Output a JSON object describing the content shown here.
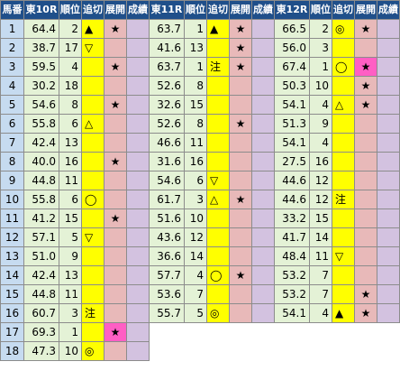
{
  "headers": [
    "馬番",
    "東10R",
    "順位",
    "追切",
    "展開",
    "成績",
    "東11R",
    "順位",
    "追切",
    "展開",
    "成績",
    "東12R",
    "順位",
    "追切",
    "展開",
    "成績"
  ],
  "colors": {
    "header_bg": "#1f4f8a",
    "rownum_bg": "#c6dbf0",
    "score_bg": "#e4f2d6",
    "oikiri_bg": "#ffff00",
    "tenkai_bg": "#e8b9b9",
    "seiseki_bg": "#d3c2e0",
    "highlight_bg": "#ff5fc4"
  },
  "rows": [
    {
      "no": "1",
      "r10": {
        "score": "64.4",
        "rank": "2",
        "oikiri": "▲",
        "tenkai": "★",
        "seiseki": ""
      },
      "r11": {
        "score": "63.7",
        "rank": "1",
        "oikiri": "▲",
        "tenkai": "★",
        "seiseki": ""
      },
      "r12": {
        "score": "66.5",
        "rank": "2",
        "oikiri": "◎",
        "tenkai": "★",
        "seiseki": ""
      }
    },
    {
      "no": "2",
      "r10": {
        "score": "38.7",
        "rank": "17",
        "oikiri": "▽",
        "tenkai": "",
        "seiseki": ""
      },
      "r11": {
        "score": "41.6",
        "rank": "13",
        "oikiri": "",
        "tenkai": "★",
        "seiseki": ""
      },
      "r12": {
        "score": "56.0",
        "rank": "3",
        "oikiri": "",
        "tenkai": "",
        "seiseki": ""
      }
    },
    {
      "no": "3",
      "r10": {
        "score": "59.5",
        "rank": "4",
        "oikiri": "",
        "tenkai": "★",
        "seiseki": ""
      },
      "r11": {
        "score": "63.7",
        "rank": "1",
        "oikiri": "注",
        "tenkai": "★",
        "seiseki": ""
      },
      "r12": {
        "score": "67.4",
        "rank": "1",
        "oikiri": "◯",
        "tenkai": "★",
        "seiseki": "",
        "tenkai_hot": true
      }
    },
    {
      "no": "4",
      "r10": {
        "score": "30.2",
        "rank": "18",
        "oikiri": "",
        "tenkai": "",
        "seiseki": ""
      },
      "r11": {
        "score": "52.6",
        "rank": "8",
        "oikiri": "",
        "tenkai": "",
        "seiseki": ""
      },
      "r12": {
        "score": "50.3",
        "rank": "10",
        "oikiri": "",
        "tenkai": "★",
        "seiseki": ""
      }
    },
    {
      "no": "5",
      "r10": {
        "score": "54.6",
        "rank": "8",
        "oikiri": "",
        "tenkai": "★",
        "seiseki": ""
      },
      "r11": {
        "score": "32.6",
        "rank": "15",
        "oikiri": "",
        "tenkai": "",
        "seiseki": ""
      },
      "r12": {
        "score": "54.1",
        "rank": "4",
        "oikiri": "△",
        "tenkai": "★",
        "seiseki": ""
      }
    },
    {
      "no": "6",
      "r10": {
        "score": "55.8",
        "rank": "6",
        "oikiri": "△",
        "tenkai": "",
        "seiseki": ""
      },
      "r11": {
        "score": "52.6",
        "rank": "8",
        "oikiri": "",
        "tenkai": "★",
        "seiseki": ""
      },
      "r12": {
        "score": "51.3",
        "rank": "9",
        "oikiri": "",
        "tenkai": "",
        "seiseki": ""
      }
    },
    {
      "no": "7",
      "r10": {
        "score": "42.4",
        "rank": "13",
        "oikiri": "",
        "tenkai": "",
        "seiseki": ""
      },
      "r11": {
        "score": "46.6",
        "rank": "11",
        "oikiri": "",
        "tenkai": "",
        "seiseki": ""
      },
      "r12": {
        "score": "54.1",
        "rank": "4",
        "oikiri": "",
        "tenkai": "",
        "seiseki": ""
      }
    },
    {
      "no": "8",
      "r10": {
        "score": "40.0",
        "rank": "16",
        "oikiri": "",
        "tenkai": "★",
        "seiseki": ""
      },
      "r11": {
        "score": "31.6",
        "rank": "16",
        "oikiri": "",
        "tenkai": "",
        "seiseki": ""
      },
      "r12": {
        "score": "27.5",
        "rank": "16",
        "oikiri": "",
        "tenkai": "",
        "seiseki": ""
      }
    },
    {
      "no": "9",
      "r10": {
        "score": "44.8",
        "rank": "11",
        "oikiri": "",
        "tenkai": "",
        "seiseki": ""
      },
      "r11": {
        "score": "54.6",
        "rank": "6",
        "oikiri": "▽",
        "tenkai": "",
        "seiseki": ""
      },
      "r12": {
        "score": "44.6",
        "rank": "12",
        "oikiri": "",
        "tenkai": "",
        "seiseki": ""
      }
    },
    {
      "no": "10",
      "r10": {
        "score": "55.8",
        "rank": "6",
        "oikiri": "◯",
        "tenkai": "",
        "seiseki": ""
      },
      "r11": {
        "score": "61.7",
        "rank": "3",
        "oikiri": "△",
        "tenkai": "★",
        "seiseki": ""
      },
      "r12": {
        "score": "44.6",
        "rank": "12",
        "oikiri": "注",
        "tenkai": "",
        "seiseki": ""
      }
    },
    {
      "no": "11",
      "r10": {
        "score": "41.2",
        "rank": "15",
        "oikiri": "",
        "tenkai": "★",
        "seiseki": ""
      },
      "r11": {
        "score": "51.6",
        "rank": "10",
        "oikiri": "",
        "tenkai": "",
        "seiseki": ""
      },
      "r12": {
        "score": "33.2",
        "rank": "15",
        "oikiri": "",
        "tenkai": "",
        "seiseki": ""
      }
    },
    {
      "no": "12",
      "r10": {
        "score": "57.1",
        "rank": "5",
        "oikiri": "▽",
        "tenkai": "",
        "seiseki": ""
      },
      "r11": {
        "score": "43.6",
        "rank": "12",
        "oikiri": "",
        "tenkai": "",
        "seiseki": ""
      },
      "r12": {
        "score": "41.7",
        "rank": "14",
        "oikiri": "",
        "tenkai": "",
        "seiseki": ""
      }
    },
    {
      "no": "13",
      "r10": {
        "score": "51.0",
        "rank": "9",
        "oikiri": "",
        "tenkai": "",
        "seiseki": ""
      },
      "r11": {
        "score": "36.6",
        "rank": "14",
        "oikiri": "",
        "tenkai": "",
        "seiseki": ""
      },
      "r12": {
        "score": "48.4",
        "rank": "11",
        "oikiri": "▽",
        "tenkai": "",
        "seiseki": ""
      }
    },
    {
      "no": "14",
      "r10": {
        "score": "42.4",
        "rank": "13",
        "oikiri": "",
        "tenkai": "",
        "seiseki": ""
      },
      "r11": {
        "score": "57.7",
        "rank": "4",
        "oikiri": "◯",
        "tenkai": "★",
        "seiseki": ""
      },
      "r12": {
        "score": "53.2",
        "rank": "7",
        "oikiri": "",
        "tenkai": "",
        "seiseki": ""
      }
    },
    {
      "no": "15",
      "r10": {
        "score": "44.8",
        "rank": "11",
        "oikiri": "",
        "tenkai": "",
        "seiseki": ""
      },
      "r11": {
        "score": "53.6",
        "rank": "7",
        "oikiri": "",
        "tenkai": "",
        "seiseki": ""
      },
      "r12": {
        "score": "53.2",
        "rank": "7",
        "oikiri": "",
        "tenkai": "★",
        "seiseki": ""
      }
    },
    {
      "no": "16",
      "r10": {
        "score": "60.7",
        "rank": "3",
        "oikiri": "注",
        "tenkai": "",
        "seiseki": ""
      },
      "r11": {
        "score": "55.7",
        "rank": "5",
        "oikiri": "◎",
        "tenkai": "",
        "seiseki": ""
      },
      "r12": {
        "score": "54.1",
        "rank": "4",
        "oikiri": "▲",
        "tenkai": "★",
        "seiseki": ""
      }
    },
    {
      "no": "17",
      "r10": {
        "score": "69.3",
        "rank": "1",
        "oikiri": "",
        "tenkai": "★",
        "seiseki": "",
        "tenkai_hot": true
      }
    },
    {
      "no": "18",
      "r10": {
        "score": "47.3",
        "rank": "10",
        "oikiri": "◎",
        "tenkai": "",
        "seiseki": ""
      }
    }
  ]
}
